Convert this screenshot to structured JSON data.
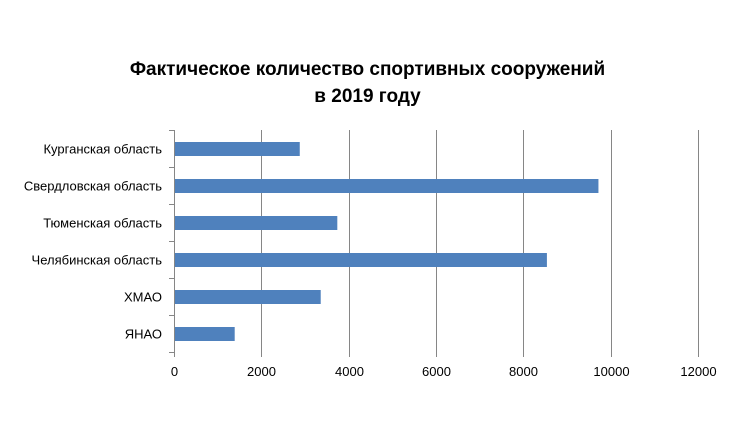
{
  "chart_data": {
    "type": "bar",
    "orientation": "horizontal",
    "title": "Фактическое количество спортивных сооружений в 2019 году",
    "title_lines": [
      "Фактическое количество спортивных сооружений",
      "в 2019 году"
    ],
    "categories": [
      "Курганская область",
      "Свердловская область",
      "Тюменская область",
      "Челябинская область",
      "ХМАО",
      "ЯНАО"
    ],
    "values": [
      2880,
      9720,
      3740,
      8540,
      3360,
      1390
    ],
    "xlim": [
      0,
      12000
    ],
    "xticks": [
      0,
      2000,
      4000,
      6000,
      8000,
      10000,
      12000
    ],
    "grid": "vertical",
    "legend": "none",
    "xlabel": "",
    "ylabel": ""
  },
  "colors": {
    "bar": "#4f81bd",
    "grid": "#868686",
    "axis": "#868686"
  }
}
